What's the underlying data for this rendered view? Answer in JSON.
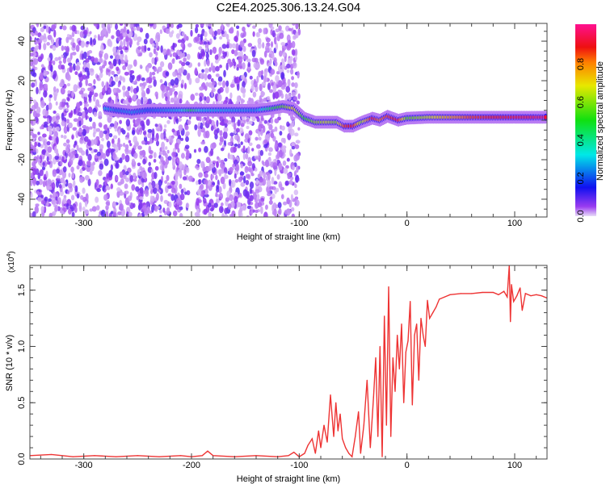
{
  "chart_data": [
    {
      "type": "heatmap",
      "title": "C2E4.2025.306.13.24.G04",
      "xlabel": "Height of straight line (km)",
      "ylabel": "Frequency (Hz)",
      "xlim": [
        -350,
        130
      ],
      "ylim": [
        -49,
        49
      ],
      "xticks": [
        -300,
        -200,
        -100,
        0,
        100
      ],
      "yticks": [
        -40,
        -20,
        0,
        20,
        40
      ],
      "colorbar": {
        "label": "Normalized spectral amplitude",
        "range": [
          0,
          1
        ],
        "ticks": [
          "0.0",
          "0.2",
          "0.4",
          "0.6",
          "0.8"
        ]
      },
      "noise_extent_km": [
        -350,
        -110
      ],
      "ridge": [
        [
          -280,
          6,
          0.3
        ],
        [
          -270,
          5,
          0.22
        ],
        [
          -255,
          4,
          0.25
        ],
        [
          -240,
          5,
          0.2
        ],
        [
          -210,
          5,
          0.3
        ],
        [
          -200,
          5,
          0.45
        ],
        [
          -190,
          5,
          0.3
        ],
        [
          -165,
          5,
          0.28
        ],
        [
          -140,
          5,
          0.25
        ],
        [
          -125,
          6,
          0.45
        ],
        [
          -115,
          7,
          0.55
        ],
        [
          -105,
          6,
          0.7
        ],
        [
          -95,
          1,
          0.5
        ],
        [
          -85,
          -1,
          0.6
        ],
        [
          -75,
          -1,
          0.65
        ],
        [
          -65,
          -1,
          0.6
        ],
        [
          -58,
          -3,
          0.85
        ],
        [
          -50,
          -3,
          0.9
        ],
        [
          -42,
          -1,
          0.6
        ],
        [
          -32,
          1,
          0.9
        ],
        [
          -25,
          0,
          0.8
        ],
        [
          -18,
          2,
          0.85
        ],
        [
          -8,
          0,
          0.9
        ],
        [
          0,
          1,
          0.55
        ],
        [
          20,
          1.5,
          0.65
        ],
        [
          40,
          1.5,
          0.75
        ],
        [
          60,
          1.5,
          0.85
        ],
        [
          80,
          1.5,
          0.88
        ],
        [
          100,
          1.5,
          0.9
        ],
        [
          120,
          1.5,
          0.92
        ],
        [
          130,
          1.5,
          0.92
        ]
      ]
    },
    {
      "type": "line",
      "xlabel": "Height of straight line (km)",
      "ylabel": "SNR (10 * v/v)",
      "yscale_label": "(x10",
      "yscale_exp": "4",
      "xlim": [
        -350,
        130
      ],
      "ylim": [
        0,
        1.72
      ],
      "xticks": [
        -300,
        -200,
        -100,
        0,
        100
      ],
      "yticks": [
        "0.0",
        "0.5",
        "1.0",
        "1.5"
      ],
      "color": "#ee3333",
      "x": [
        -350,
        -330,
        -310,
        -290,
        -270,
        -250,
        -230,
        -210,
        -200,
        -190,
        -185,
        -180,
        -160,
        -140,
        -120,
        -110,
        -105,
        -100,
        -95,
        -92,
        -88,
        -85,
        -82,
        -80,
        -77,
        -74,
        -71,
        -68,
        -66,
        -64,
        -62,
        -60,
        -57,
        -54,
        -51,
        -48,
        -45,
        -43,
        -40,
        -37,
        -34,
        -31,
        -29,
        -27,
        -25,
        -23,
        -21,
        -19,
        -17,
        -15,
        -13,
        -11,
        -9,
        -7,
        -5,
        -3,
        -1,
        1,
        3,
        5,
        7,
        9,
        11,
        13,
        15,
        17,
        19,
        21,
        24,
        27,
        30,
        35,
        40,
        50,
        60,
        70,
        80,
        85,
        90,
        93,
        95,
        96,
        97,
        99,
        102,
        105,
        107,
        110,
        115,
        120,
        125,
        130
      ],
      "y": [
        0.03,
        0.04,
        0.02,
        0.03,
        0.02,
        0.03,
        0.02,
        0.03,
        0.02,
        0.03,
        0.07,
        0.03,
        0.02,
        0.03,
        0.02,
        0.03,
        0.06,
        0.02,
        0.05,
        0.12,
        0.18,
        0.05,
        0.25,
        0.1,
        0.3,
        0.15,
        0.57,
        0.2,
        0.5,
        0.25,
        0.4,
        0.18,
        0.1,
        0.05,
        0.02,
        0.2,
        0.42,
        0.05,
        0.3,
        0.7,
        0.1,
        0.55,
        0.9,
        0.2,
        1.0,
        0.02,
        1.27,
        0.3,
        1.53,
        0.2,
        0.9,
        0.6,
        1.1,
        0.8,
        1.2,
        0.5,
        0.95,
        1.05,
        1.4,
        0.48,
        1.1,
        1.2,
        0.7,
        1.25,
        1.1,
        1.0,
        1.41,
        1.25,
        1.3,
        1.35,
        1.42,
        1.44,
        1.46,
        1.47,
        1.47,
        1.48,
        1.48,
        1.46,
        1.49,
        1.44,
        1.72,
        1.22,
        1.55,
        1.4,
        1.45,
        1.52,
        1.32,
        1.47,
        1.45,
        1.46,
        1.45,
        1.43
      ]
    }
  ]
}
